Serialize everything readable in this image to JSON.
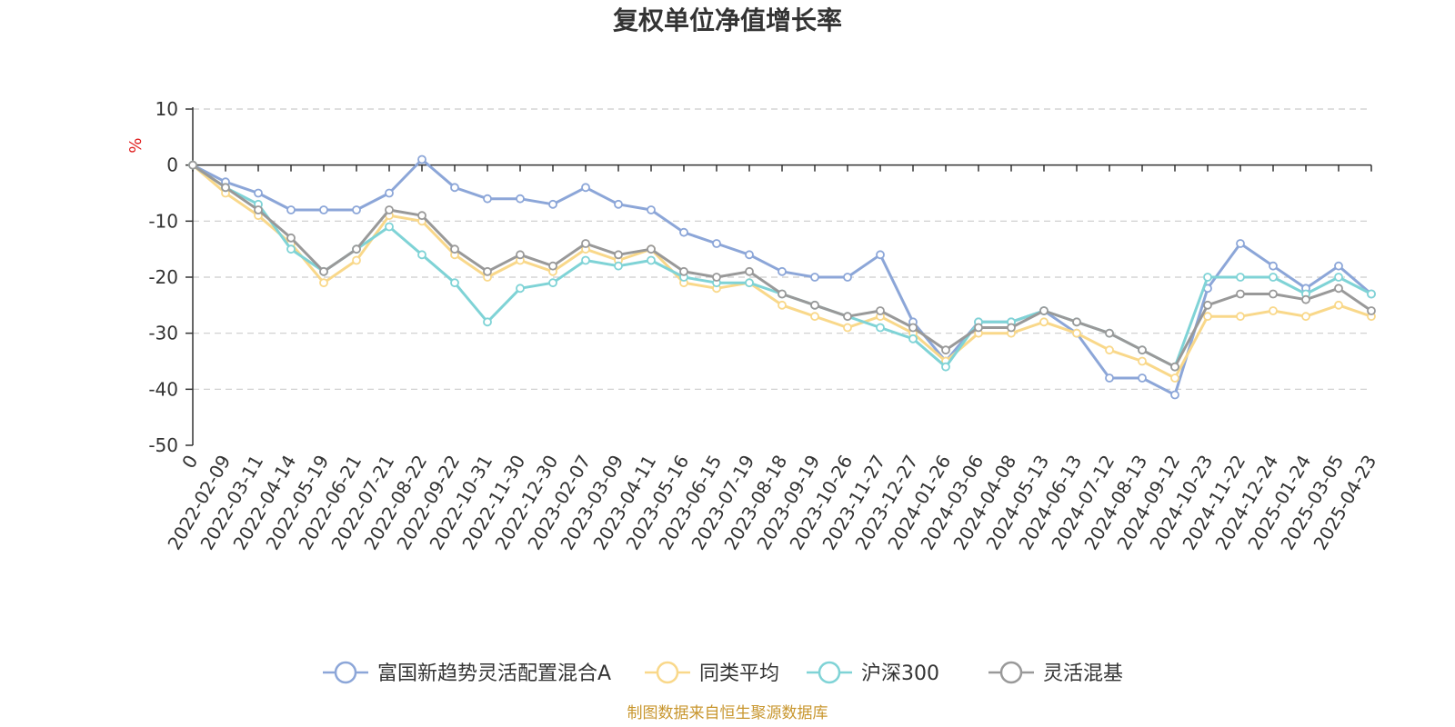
{
  "chart_data": {
    "type": "line",
    "title": "复权单位净值增长率",
    "ylabel": "%",
    "ylim": [
      -50,
      10
    ],
    "yticks": [
      10,
      0,
      -10,
      -20,
      -30,
      -40,
      -50
    ],
    "grid": true,
    "legend_position": "bottom",
    "x_tick_labels": [
      "0",
      "2022-02-09",
      "2022-03-11",
      "2022-04-14",
      "2022-05-19",
      "2022-06-21",
      "2022-07-21",
      "2022-08-22",
      "2022-09-22",
      "2022-10-31",
      "2022-11-30",
      "2022-12-30",
      "2023-02-07",
      "2023-03-09",
      "2023-04-11",
      "2023-05-16",
      "2023-06-15",
      "2023-07-19",
      "2023-08-18",
      "2023-09-19",
      "2023-10-26",
      "2023-11-27",
      "2023-12-27",
      "2024-01-26",
      "2024-03-06",
      "2024-04-08",
      "2024-05-13",
      "2024-06-13",
      "2024-07-12",
      "2024-08-13",
      "2024-09-12",
      "2024-10-23",
      "2024-11-22",
      "2024-12-24",
      "2025-01-24",
      "2025-03-05",
      "2025-04-23"
    ],
    "x": [
      "0",
      "2022-02-09",
      "2022-03-11",
      "2022-04-14",
      "2022-05-19",
      "2022-06-21",
      "2022-07-21",
      "2022-08-22",
      "2022-09-22",
      "2022-10-31",
      "2022-11-30",
      "2022-12-30",
      "2023-02-07",
      "2023-03-09",
      "2023-04-11",
      "2023-05-16",
      "2023-06-15",
      "2023-07-19",
      "2023-08-18",
      "2023-09-19",
      "2023-10-26",
      "2023-11-27",
      "2023-12-27",
      "2024-01-26",
      "2024-03-06",
      "2024-04-08",
      "2024-05-13",
      "2024-06-13",
      "2024-07-12",
      "2024-08-13",
      "2024-09-12",
      "2024-10-23",
      "2024-11-22",
      "2024-12-24",
      "2025-01-24",
      "2025-03-05",
      "2025-04-23"
    ],
    "series": [
      {
        "name": "富国新趋势灵活配置混合A",
        "color": "#8ca6d8",
        "values": [
          0,
          -3,
          -5,
          -8,
          -8,
          -8,
          -5,
          1,
          -4,
          -6,
          -6,
          -7,
          -4,
          -7,
          -8,
          -12,
          -14,
          -16,
          -19,
          -20,
          -20,
          -16,
          -28,
          -35,
          -28,
          -28,
          -26,
          -30,
          -38,
          -38,
          -41,
          -22,
          -14,
          -18,
          -22,
          -18,
          -23
        ]
      },
      {
        "name": "同类平均",
        "color": "#f9d88a",
        "values": [
          0,
          -5,
          -9,
          -14,
          -21,
          -17,
          -9,
          -10,
          -16,
          -20,
          -17,
          -19,
          -15,
          -17,
          -15,
          -21,
          -22,
          -21,
          -25,
          -27,
          -29,
          -27,
          -30,
          -35,
          -30,
          -30,
          -28,
          -30,
          -33,
          -35,
          -38,
          -27,
          -27,
          -26,
          -27,
          -25,
          -27
        ]
      },
      {
        "name": "沪深300",
        "color": "#7fd3d6",
        "values": [
          0,
          -4,
          -7,
          -15,
          -19,
          -15,
          -11,
          -16,
          -21,
          -28,
          -22,
          -21,
          -17,
          -18,
          -17,
          -20,
          -21,
          -21,
          -23,
          -25,
          -27,
          -29,
          -31,
          -36,
          -28,
          -28,
          -26,
          -28,
          -30,
          -33,
          -36,
          -20,
          -20,
          -20,
          -23,
          -20,
          -23
        ]
      },
      {
        "name": "灵活混基",
        "color": "#999999",
        "values": [
          0,
          -4,
          -8,
          -13,
          -19,
          -15,
          -8,
          -9,
          -15,
          -19,
          -16,
          -18,
          -14,
          -16,
          -15,
          -19,
          -20,
          -19,
          -23,
          -25,
          -27,
          -26,
          -29,
          -33,
          -29,
          -29,
          -26,
          -28,
          -30,
          -33,
          -36,
          -25,
          -23,
          -23,
          -24,
          -22,
          -26
        ]
      }
    ]
  },
  "source_note": "制图数据来自恒生聚源数据库"
}
